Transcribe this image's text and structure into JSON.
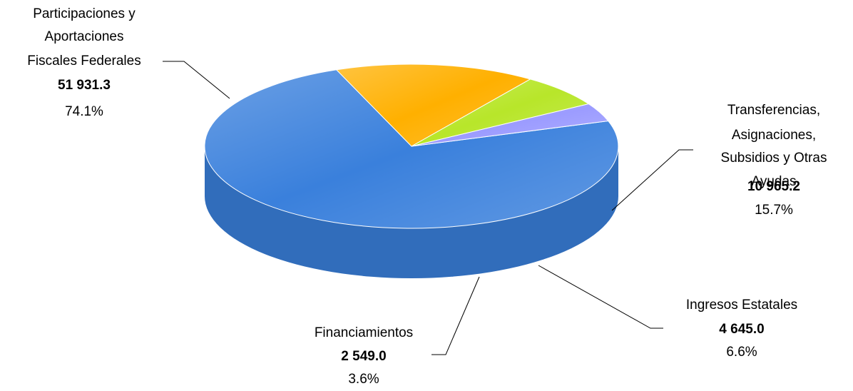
{
  "chart_data": {
    "type": "pie",
    "categories": [
      [
        "Participaciones y",
        "Aportaciones",
        "Fiscales Federales"
      ],
      [
        "Transferencias,",
        "Asignaciones,",
        "Subsidios y Otras",
        "Ayudas"
      ],
      [
        "Ingresos Estatales"
      ],
      [
        "Financiamientos"
      ]
    ],
    "values": [
      51931.3,
      10965.2,
      4645.0,
      2549.0
    ],
    "value_labels": [
      "51 931.3",
      "10 965.2",
      "4 645.0",
      "2 549.0"
    ],
    "percent_labels": [
      "74.1%",
      "15.7%",
      "6.6%",
      "3.6%"
    ],
    "colors": [
      "#3a80dc",
      "#ffb000",
      "#b8e62a",
      "#9c9cff"
    ]
  }
}
